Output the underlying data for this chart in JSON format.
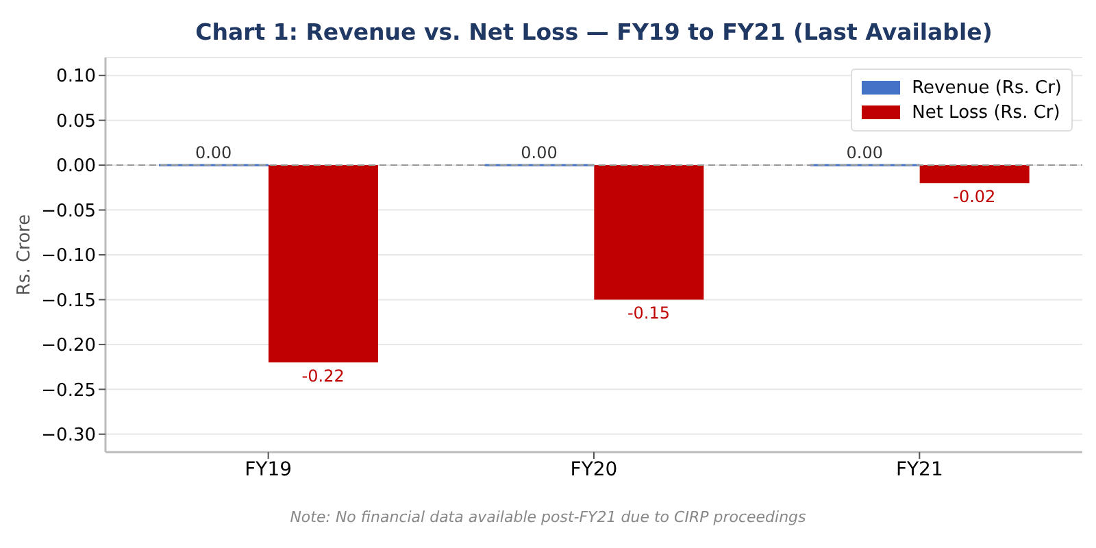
{
  "chart_data": {
    "type": "bar",
    "title": "Chart 1: Revenue vs. Net Loss — FY19 to FY21 (Last Available)",
    "ylabel": "Rs. Crore",
    "categories": [
      "FY19",
      "FY20",
      "FY21"
    ],
    "series": [
      {
        "name": "Revenue (Rs. Cr)",
        "color": "#4472c4",
        "values": [
          0,
          0,
          0
        ],
        "value_labels": [
          "0.00",
          "0.00",
          "0.00"
        ]
      },
      {
        "name": "Net Loss (Rs. Cr)",
        "color": "#c00000",
        "values": [
          -0.22,
          -0.15,
          -0.02
        ],
        "value_labels": [
          "-0.22",
          "-0.15",
          "-0.02"
        ]
      }
    ],
    "ylim": [
      -0.32,
      0.12
    ],
    "yticks": [
      {
        "value": -0.3,
        "label": "−0.30"
      },
      {
        "value": -0.25,
        "label": "−0.25"
      },
      {
        "value": -0.2,
        "label": "−0.20"
      },
      {
        "value": -0.15,
        "label": "−0.15"
      },
      {
        "value": -0.1,
        "label": "−0.10"
      },
      {
        "value": -0.05,
        "label": "−0.05"
      },
      {
        "value": 0,
        "label": "0.00"
      },
      {
        "value": 0.05,
        "label": "0.05"
      },
      {
        "value": 0.1,
        "label": "0.10"
      }
    ],
    "ref_lines": [
      {
        "axis": "y",
        "value": 0,
        "color": "#999999",
        "line_style": "dashed"
      }
    ],
    "grid": "y",
    "legend": "top right",
    "annotations": [
      "Note: No financial data available post-FY21 due to CIRP proceedings"
    ]
  }
}
